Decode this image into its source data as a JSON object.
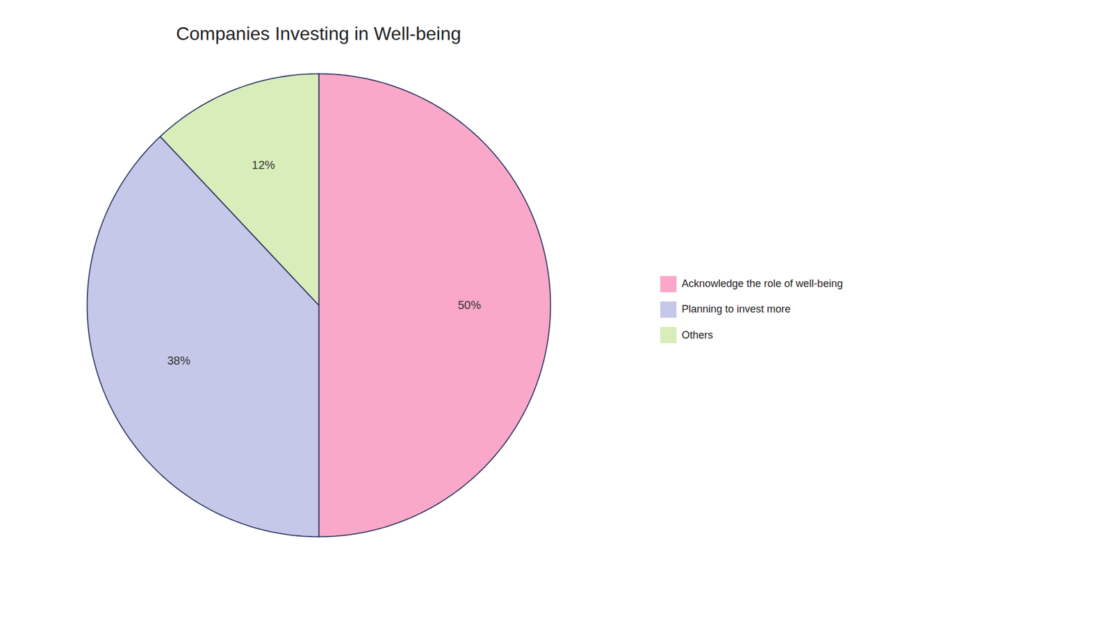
{
  "chart_data": {
    "type": "pie",
    "title": "Companies Investing in Well-being",
    "categories": [
      "Acknowledge the role of well-being",
      "Planning to invest more",
      "Others"
    ],
    "values": [
      50,
      38,
      12
    ],
    "value_labels": [
      "50%",
      "38%",
      "12%"
    ],
    "colors": [
      "#F9A8C9",
      "#C5C8E8",
      "#D8EDBA"
    ],
    "data_labels": true,
    "legend": "right"
  }
}
